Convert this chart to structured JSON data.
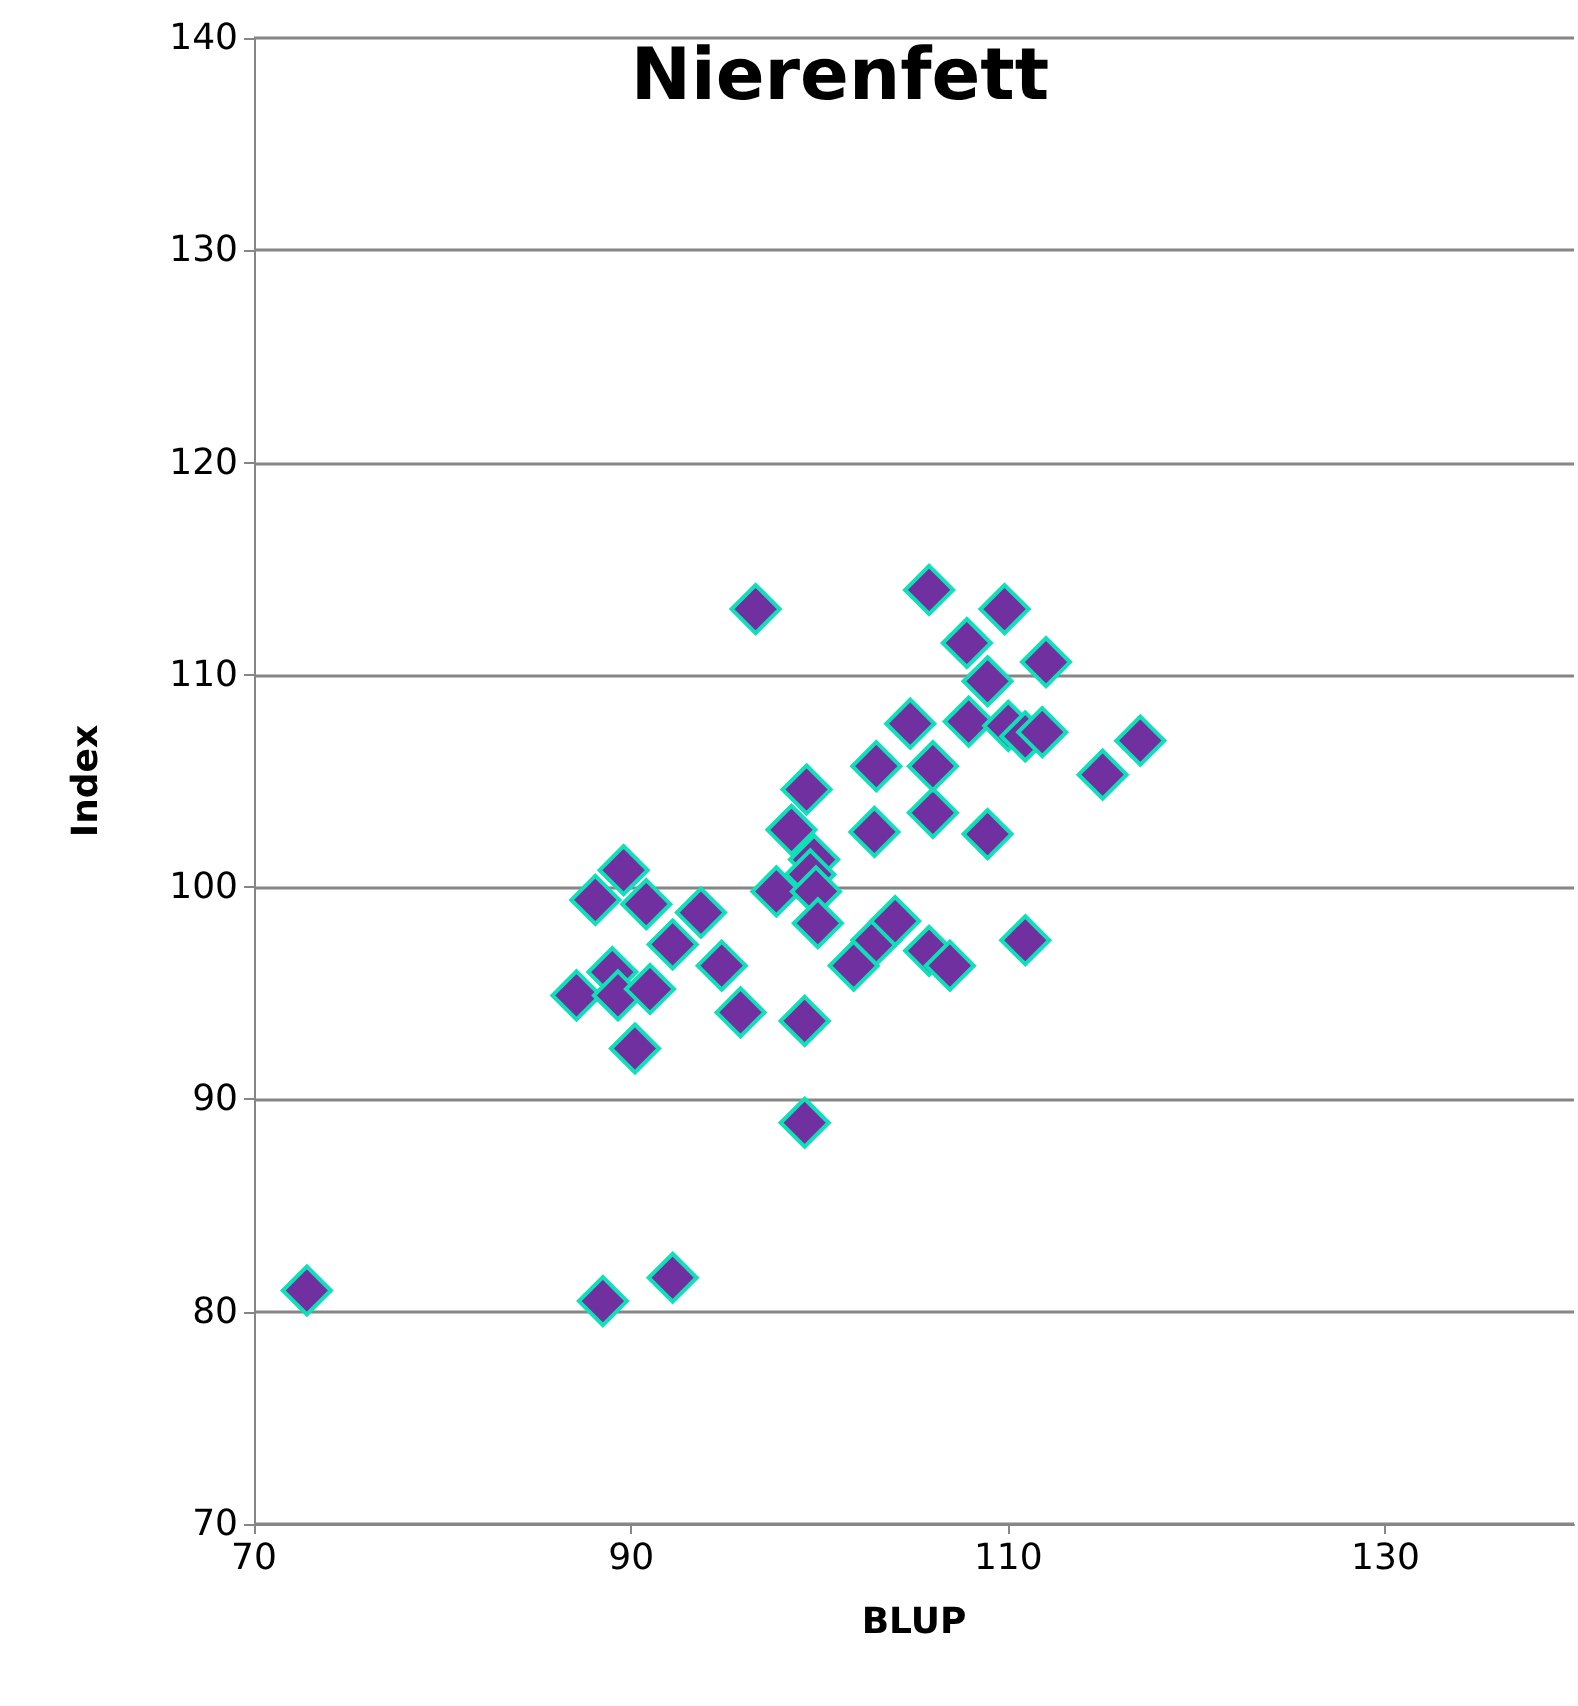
{
  "chart_data": {
    "type": "scatter",
    "title": "Nierenfett",
    "xlabel": "BLUP",
    "ylabel": "Index",
    "xlim": [
      70,
      140
    ],
    "xticks": [
      70,
      90,
      110,
      130
    ],
    "ylim": [
      70,
      140
    ],
    "yticks": [
      70,
      80,
      90,
      100,
      110,
      120,
      130,
      140
    ],
    "grid": "y",
    "marker": "diamond",
    "series": [
      {
        "color": "#7030a0",
        "x": [
          72.8,
          88.5,
          92.2,
          96.6,
          87.1,
          88.1,
          89.6,
          89.0,
          89.3,
          91.0,
          90.2,
          90.8,
          92.2,
          93.7,
          94.8,
          95.8,
          99.2,
          99.2,
          97.7,
          98.5,
          99.3,
          99.7,
          99.5,
          99.8,
          99.9,
          101.8,
          102.9,
          103.0,
          103.0,
          104.0,
          104.8,
          106.0,
          106.0,
          105.8,
          105.8,
          106.9,
          107.8,
          107.9,
          108.9,
          108.9,
          109.8,
          110.0,
          110.9,
          110.9,
          111.8,
          112.0,
          115.0,
          117.0
        ],
        "values": [
          81.0,
          80.5,
          81.6,
          113.1,
          94.9,
          99.4,
          100.8,
          96.0,
          94.9,
          95.2,
          92.4,
          99.2,
          97.3,
          98.8,
          96.3,
          94.1,
          88.9,
          93.7,
          99.8,
          102.7,
          104.6,
          101.3,
          100.6,
          99.8,
          98.3,
          96.3,
          102.6,
          105.7,
          97.5,
          98.4,
          107.7,
          103.5,
          105.7,
          114.0,
          97.0,
          96.3,
          111.5,
          107.8,
          109.7,
          102.5,
          113.1,
          107.6,
          107.1,
          97.5,
          107.3,
          110.6,
          105.3,
          106.9
        ]
      }
    ]
  }
}
